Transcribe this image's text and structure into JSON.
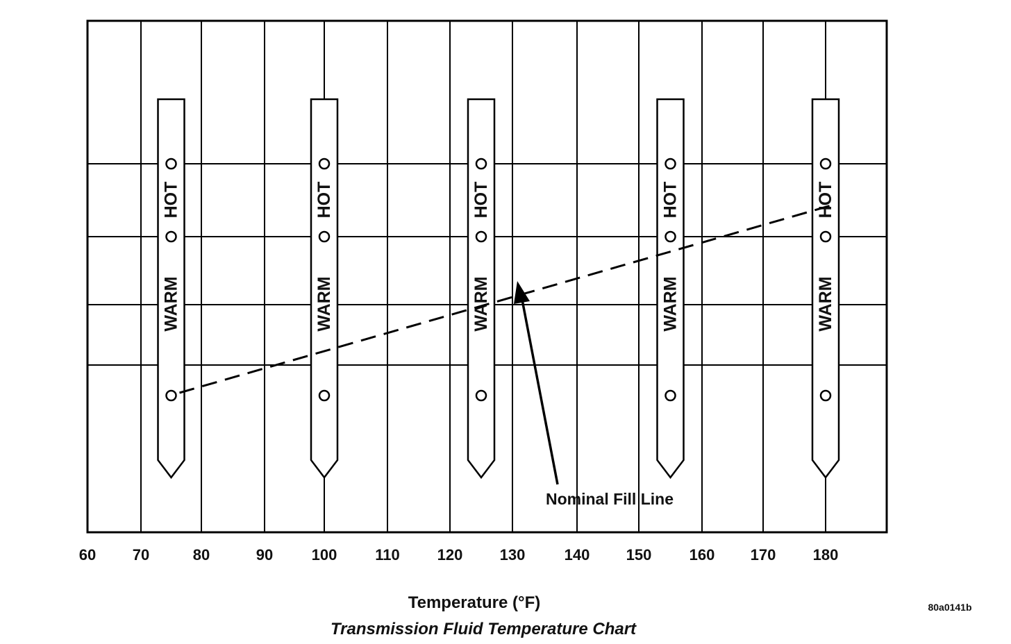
{
  "chart_data": {
    "type": "line",
    "title": "Transmission Fluid Temperature Chart",
    "xlabel": "Temperature (°F)",
    "ylabel": "",
    "xlim": [
      60,
      190
    ],
    "x_ticks": [
      60,
      70,
      80,
      90,
      100,
      110,
      120,
      130,
      140,
      150,
      160,
      170,
      180
    ],
    "x_tick_labels": [
      "60",
      "70",
      "80",
      "90",
      "100",
      "110",
      "120",
      "130",
      "140",
      "150",
      "160",
      "170",
      "180"
    ],
    "grid": true,
    "dipsticks": [
      {
        "temperature": 75,
        "warm_label": "WARM",
        "hot_label": "HOT"
      },
      {
        "temperature": 100,
        "warm_label": "WARM",
        "hot_label": "HOT"
      },
      {
        "temperature": 125,
        "warm_label": "WARM",
        "hot_label": "HOT"
      },
      {
        "temperature": 155,
        "warm_label": "WARM",
        "hot_label": "HOT"
      },
      {
        "temperature": 180,
        "warm_label": "WARM",
        "hot_label": "HOT"
      }
    ],
    "series": [
      {
        "x": [
          75,
          180
        ],
        "style": "dashed"
      }
    ],
    "annotation": "Nominal Fill Line",
    "figure_id": "80a0141b"
  }
}
